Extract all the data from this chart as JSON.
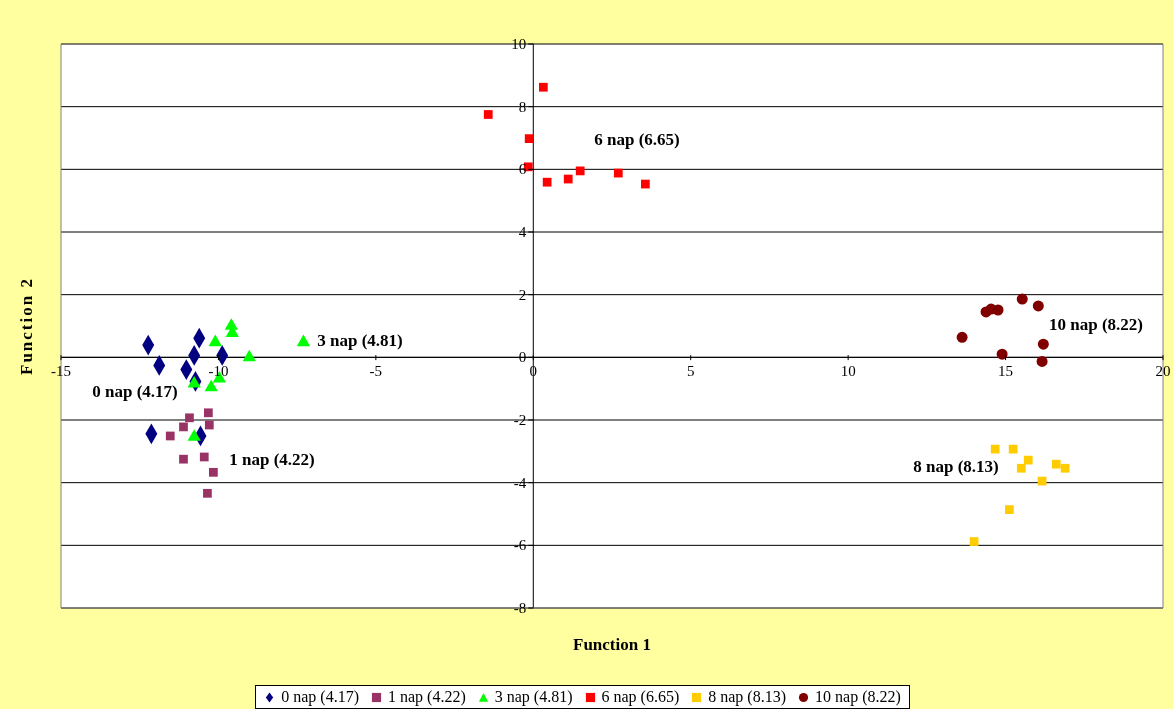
{
  "chart_data": {
    "type": "scatter",
    "xlabel": "Function 1",
    "ylabel": "Function 2",
    "xlim": [
      -15,
      20
    ],
    "xticks": [
      -15,
      -10,
      -5,
      0,
      5,
      10,
      15,
      20
    ],
    "ylim": [
      -8,
      10
    ],
    "yticks": [
      -8,
      -6,
      -4,
      -2,
      0,
      2,
      4,
      6,
      8,
      10
    ],
    "grid": "y",
    "legend": "bottom",
    "series": [
      {
        "name": "0 nap (4.17)",
        "color": "#000080",
        "marker": "diamond",
        "x": [
          -12.23,
          -11.88,
          -10.61,
          -11.02,
          -10.77,
          -9.88,
          -10.73,
          -12.13,
          -10.57
        ],
        "values": [
          0.39,
          -0.26,
          0.61,
          -0.39,
          0.06,
          0.06,
          -0.77,
          -2.44,
          -2.51
        ]
      },
      {
        "name": "1 nap (4.22)",
        "color": "#993366",
        "marker": "square",
        "x": [
          -11.53,
          -11.11,
          -10.92,
          -10.32,
          -10.29,
          -11.11,
          -10.45,
          -10.16,
          -10.35
        ],
        "values": [
          -2.51,
          -2.22,
          -1.93,
          -1.77,
          -2.16,
          -3.25,
          -3.18,
          -3.67,
          -4.34
        ]
      },
      {
        "name": "3 nap (4.81)",
        "color": "#00ff00",
        "marker": "triangle",
        "x": [
          -9.59,
          -9.56,
          -10.1,
          -9.02,
          -10.77,
          -10.23,
          -9.97,
          -10.77,
          -7.3
        ],
        "values": [
          1.0,
          0.77,
          0.48,
          0.0,
          -0.84,
          -0.96,
          -0.68,
          -2.54,
          0.48
        ]
      },
      {
        "name": "6 nap (6.65)",
        "color": "#ff0000",
        "marker": "square",
        "x": [
          -1.43,
          0.32,
          -0.13,
          -0.16,
          0.44,
          1.11,
          1.49,
          2.7,
          3.56
        ],
        "values": [
          7.75,
          8.62,
          6.98,
          6.08,
          5.59,
          5.69,
          5.95,
          5.88,
          5.53
        ]
      },
      {
        "name": "8 nap (8.13)",
        "color": "#ffcc00",
        "marker": "square",
        "x": [
          14.67,
          15.24,
          15.5,
          15.72,
          16.16,
          16.61,
          16.89,
          15.12,
          14.0
        ],
        "values": [
          -2.93,
          -2.93,
          -3.54,
          -3.28,
          -3.95,
          -3.41,
          -3.54,
          -4.86,
          -5.88
        ]
      },
      {
        "name": "10 nap (8.22)",
        "color": "#800000",
        "marker": "circle",
        "x": [
          13.62,
          14.38,
          14.54,
          14.76,
          15.53,
          16.04,
          14.89,
          16.2,
          16.16
        ],
        "values": [
          0.64,
          1.45,
          1.54,
          1.51,
          1.86,
          1.64,
          0.1,
          0.42,
          -0.13
        ]
      }
    ],
    "annotations": [
      "0 nap (4.17)",
      "1 nap (4.22)",
      "3 nap (4.81)",
      "6 nap (6.65)",
      "10 nap (8.22)",
      "8 nap (8.13)"
    ]
  }
}
